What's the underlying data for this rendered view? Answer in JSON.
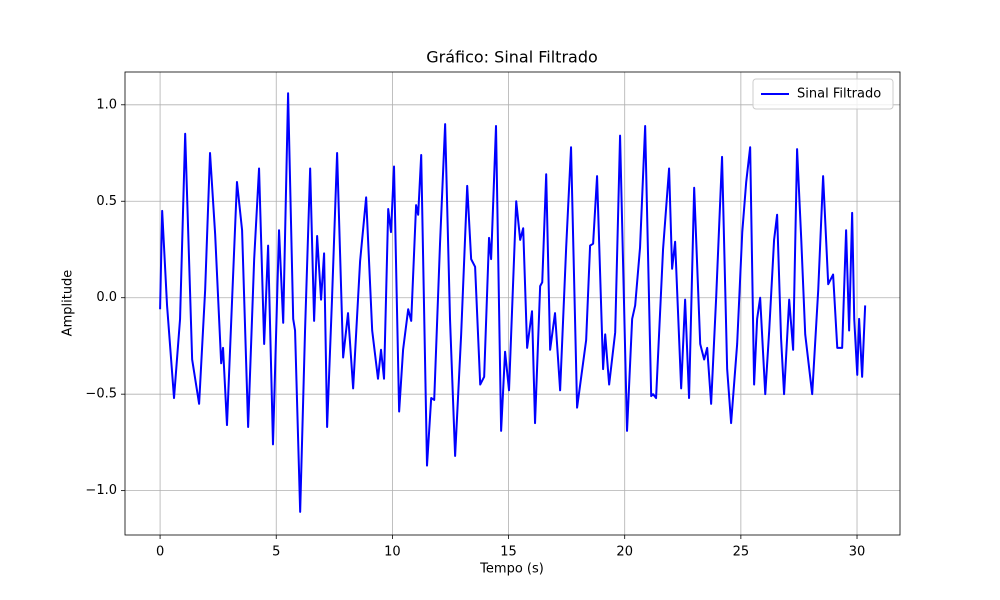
{
  "chart_data": {
    "type": "line",
    "title": "Gráfico: Sinal Filtrado",
    "x_label": "Tempo (s)",
    "y_label": "Amplitude",
    "x": [
      0,
      0.09,
      0.3,
      0.6,
      0.86,
      1.08,
      1.38,
      1.68,
      1.94,
      2.15,
      2.37,
      2.63,
      2.71,
      2.88,
      3.1,
      3.31,
      3.53,
      3.79,
      4.05,
      4.26,
      4.48,
      4.65,
      4.86,
      5.12,
      5.3,
      5.51,
      5.73,
      5.81,
      6.03,
      6.24,
      6.46,
      6.63,
      6.76,
      6.93,
      7.06,
      7.19,
      7.4,
      7.62,
      7.88,
      8.09,
      8.31,
      8.61,
      8.87,
      9.13,
      9.38,
      9.51,
      9.64,
      9.82,
      9.94,
      10.07,
      10.29,
      10.46,
      10.68,
      10.81,
      11.02,
      11.11,
      11.24,
      11.49,
      11.67,
      11.8,
      12.05,
      12.27,
      12.48,
      12.7,
      12.96,
      13.22,
      13.39,
      13.56,
      13.78,
      13.95,
      14.16,
      14.25,
      14.46,
      14.68,
      14.85,
      15.02,
      15.33,
      15.5,
      15.63,
      15.8,
      16.01,
      16.14,
      16.36,
      16.45,
      16.62,
      16.79,
      17.0,
      17.22,
      17.48,
      17.69,
      17.95,
      18.34,
      18.51,
      18.64,
      18.81,
      19.07,
      19.16,
      19.33,
      19.59,
      19.8,
      20.1,
      20.32,
      20.45,
      20.66,
      20.88,
      21.14,
      21.22,
      21.35,
      21.65,
      21.91,
      22.04,
      22.17,
      22.43,
      22.6,
      22.77,
      22.99,
      23.25,
      23.42,
      23.55,
      23.72,
      23.94,
      24.19,
      24.41,
      24.58,
      24.84,
      25.06,
      25.23,
      25.4,
      25.57,
      25.7,
      25.83,
      26.05,
      26.22,
      26.43,
      26.56,
      26.73,
      26.86,
      27.08,
      27.25,
      27.42,
      27.6,
      27.77,
      28.07,
      28.33,
      28.54,
      28.76,
      28.97,
      29.15,
      29.36,
      29.53,
      29.66,
      29.79,
      29.88,
      30.01,
      30.09,
      30.22,
      30.35
    ],
    "series": [
      {
        "name": "Sinal Filtrado",
        "color": "#0000ff",
        "values": [
          -0.06,
          0.45,
          -0.04,
          -0.52,
          -0.11,
          0.85,
          -0.32,
          -0.55,
          0.04,
          0.75,
          0.33,
          -0.34,
          -0.26,
          -0.66,
          -0.01,
          0.6,
          0.35,
          -0.67,
          0.2,
          0.67,
          -0.24,
          0.27,
          -0.76,
          0.35,
          -0.13,
          1.06,
          -0.11,
          -0.17,
          -1.11,
          -0.17,
          0.67,
          -0.12,
          0.32,
          -0.01,
          0.23,
          -0.67,
          -0.01,
          0.75,
          -0.31,
          -0.08,
          -0.47,
          0.19,
          0.52,
          -0.17,
          -0.42,
          -0.27,
          -0.42,
          0.46,
          0.34,
          0.68,
          -0.59,
          -0.27,
          -0.06,
          -0.12,
          0.48,
          0.43,
          0.74,
          -0.87,
          -0.52,
          -0.53,
          0.28,
          0.9,
          -0.11,
          -0.82,
          -0.19,
          0.58,
          0.2,
          0.16,
          -0.45,
          -0.41,
          0.31,
          0.2,
          0.89,
          -0.69,
          -0.28,
          -0.48,
          0.5,
          0.3,
          0.36,
          -0.26,
          -0.07,
          -0.65,
          0.06,
          0.08,
          0.64,
          -0.27,
          -0.08,
          -0.48,
          0.26,
          0.78,
          -0.57,
          -0.22,
          0.27,
          0.28,
          0.63,
          -0.37,
          -0.19,
          -0.45,
          -0.18,
          0.84,
          -0.69,
          -0.11,
          -0.04,
          0.26,
          0.89,
          -0.51,
          -0.5,
          -0.52,
          0.25,
          0.67,
          0.15,
          0.29,
          -0.47,
          -0.01,
          -0.52,
          0.57,
          -0.24,
          -0.32,
          -0.26,
          -0.55,
          0.01,
          0.73,
          -0.37,
          -0.65,
          -0.24,
          0.34,
          0.6,
          0.78,
          -0.45,
          -0.11,
          0.0,
          -0.5,
          -0.17,
          0.3,
          0.43,
          -0.21,
          -0.5,
          -0.01,
          -0.27,
          0.77,
          0.3,
          -0.19,
          -0.5,
          0.04,
          0.63,
          0.07,
          0.12,
          -0.26,
          -0.26,
          0.35,
          -0.17,
          0.44,
          -0.11,
          -0.4,
          -0.11,
          -0.41,
          -0.04
        ]
      }
    ],
    "xlim": [
      -1.51,
      31.85
    ],
    "ylim": [
      -1.23,
      1.17
    ],
    "xticks": [
      0,
      5,
      10,
      15,
      20,
      25,
      30
    ],
    "yticks": [
      {
        "value": -1.0,
        "label": "−1.0"
      },
      {
        "value": -0.5,
        "label": "−0.5"
      },
      {
        "value": 0,
        "label": "0.0"
      },
      {
        "value": 0.5,
        "label": "0.5"
      },
      {
        "value": 1.0,
        "label": "1.0"
      }
    ],
    "grid": true,
    "legend": "upper right"
  }
}
